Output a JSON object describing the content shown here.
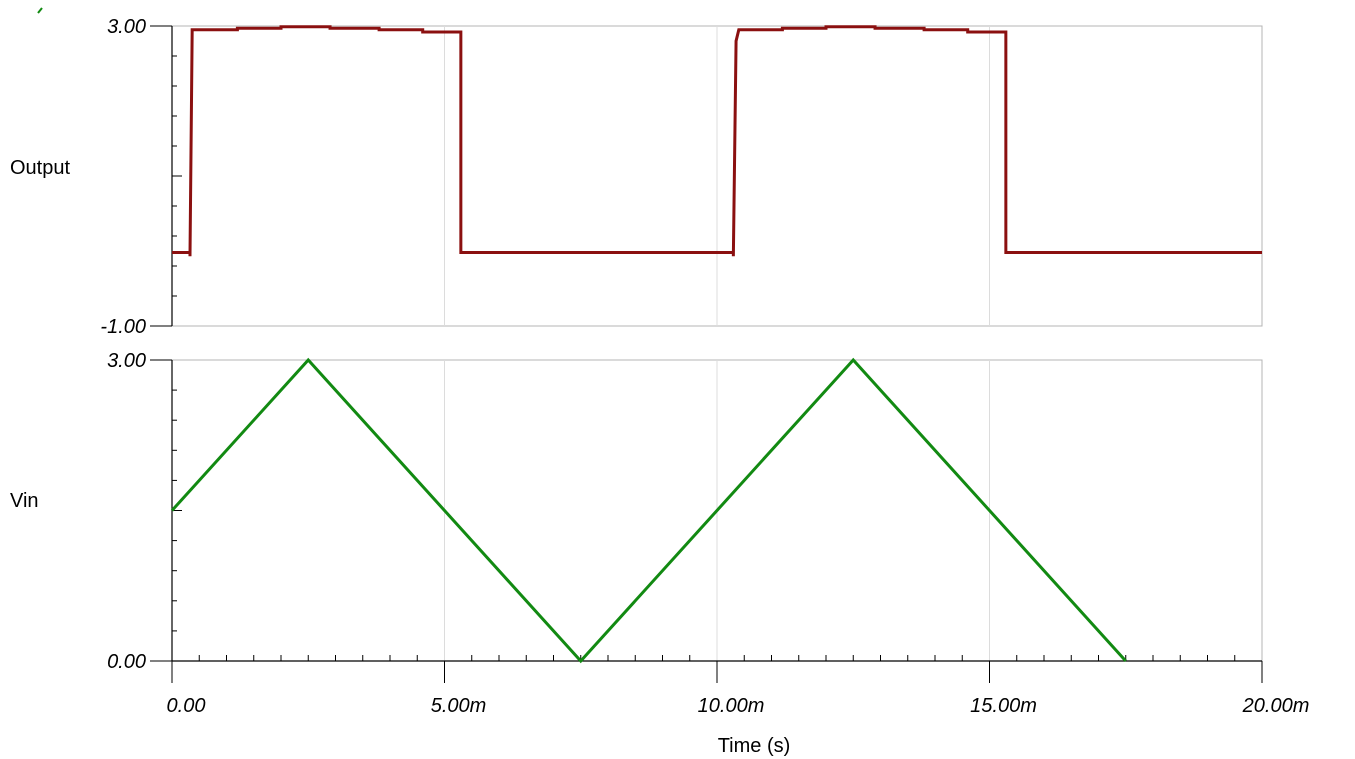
{
  "chart_data": {
    "type": "line",
    "xlabel": "Time (s)",
    "xlim": [
      0,
      0.02
    ],
    "x_ticks": [
      {
        "value": 0,
        "label": "0.00"
      },
      {
        "value": 0.005,
        "label": "5.00m"
      },
      {
        "value": 0.01,
        "label": "10.00m"
      },
      {
        "value": 0.015,
        "label": "15.00m"
      },
      {
        "value": 0.02,
        "label": "20.00m"
      }
    ],
    "grid": true,
    "panels": [
      {
        "ylabel": "Output",
        "ylabel_color": "#000000",
        "ylim": [
          -1,
          3
        ],
        "y_ticks": [
          {
            "value": 3,
            "label": "3.00"
          },
          {
            "value": -1,
            "label": "-1.00"
          }
        ],
        "series": [
          {
            "color": "#8b1010",
            "x": [
              0,
              0.00033,
              0.00033,
              0.00037,
              0.00037,
              0.0012,
              0.0012,
              0.002,
              0.002,
              0.0029,
              0.0029,
              0.0038,
              0.0038,
              0.0046,
              0.0046,
              0.0053,
              0.0053,
              0.0103,
              0.0103,
              0.01035,
              0.0104,
              0.0112,
              0.0112,
              0.012,
              0.012,
              0.0129,
              0.0129,
              0.0138,
              0.0138,
              0.0146,
              0.0146,
              0.0153,
              0.0153,
              0.02
            ],
            "y": [
              -0.02,
              -0.02,
              -0.07,
              2.92,
              2.95,
              2.95,
              2.97,
              2.97,
              2.99,
              2.99,
              2.97,
              2.97,
              2.95,
              2.95,
              2.92,
              2.92,
              -0.02,
              -0.02,
              -0.07,
              2.8,
              2.95,
              2.95,
              2.97,
              2.97,
              2.99,
              2.99,
              2.97,
              2.97,
              2.95,
              2.95,
              2.92,
              2.92,
              -0.02,
              -0.02
            ]
          }
        ]
      },
      {
        "ylabel": "Vin",
        "ylabel_color": "#128a12",
        "ylim": [
          0,
          3
        ],
        "y_ticks": [
          {
            "value": 3,
            "label": "3.00"
          },
          {
            "value": 0,
            "label": "0.00"
          }
        ],
        "series": [
          {
            "color": "#128a12",
            "x": [
              0,
              0.0025,
              0.0075,
              0.0125,
              0.0175
            ],
            "y": [
              1.5,
              3,
              0,
              3,
              0
            ]
          }
        ]
      }
    ]
  }
}
